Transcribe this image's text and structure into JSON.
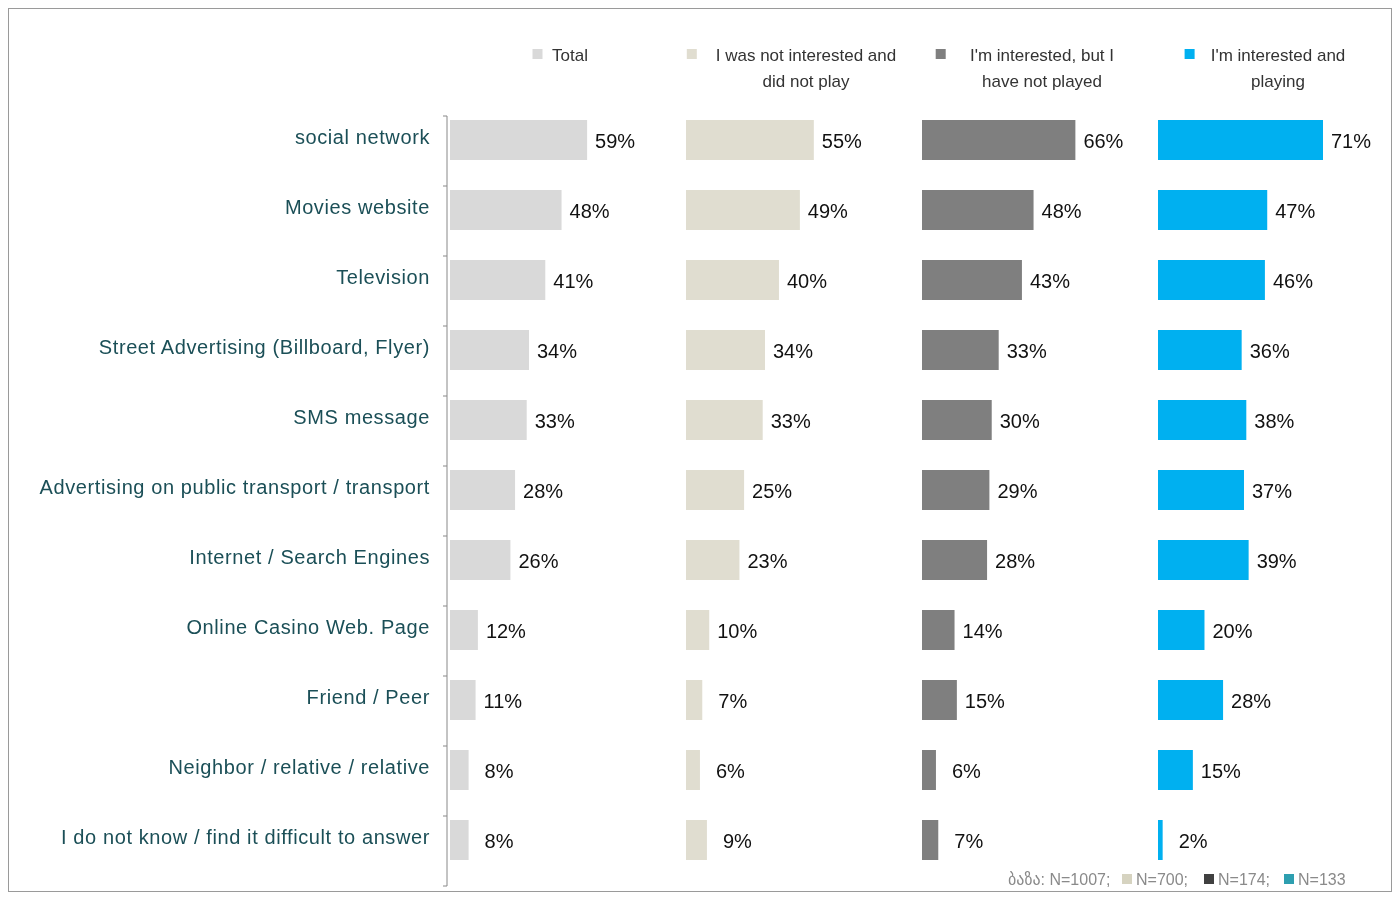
{
  "chart_data": [
    {
      "type": "bar",
      "orientation": "horizontal",
      "categories": [
        "social network",
        "Movies website",
        "Television",
        "Street Advertising (Billboard, Flyer)",
        "SMS message",
        "Advertising on public transport / transport",
        "Internet / Search Engines",
        "Online Casino Web. Page",
        "Friend / Peer",
        "Neighbor / relative / relative",
        "I do not know / find it difficult to answer"
      ],
      "series": [
        {
          "name": "Total",
          "color": "#d9d9d9",
          "values": [
            59,
            48,
            41,
            34,
            33,
            28,
            26,
            12,
            11,
            8,
            8
          ],
          "value_labels": [
            "59%",
            "48%",
            "41%",
            "34%",
            "33%",
            "28%",
            "26%",
            "12%",
            "11%",
            "8%",
            "8%"
          ]
        }
      ],
      "legend": "top",
      "tick_labels": "y",
      "annotations": [
        "ბაზა: N=1007;"
      ]
    },
    {
      "type": "bar",
      "orientation": "horizontal",
      "series": [
        {
          "name": "I was not interested and did not play",
          "color": "#e0ddd0",
          "values": [
            55,
            49,
            40,
            34,
            33,
            25,
            23,
            10,
            7,
            6,
            9
          ],
          "value_labels": [
            "55%",
            "49%",
            "40%",
            "34%",
            "33%",
            "25%",
            "23%",
            "10%",
            "7%",
            "6%",
            "9%"
          ]
        }
      ],
      "legend": "top",
      "annotations": [
        "N=700;"
      ]
    },
    {
      "type": "bar",
      "orientation": "horizontal",
      "series": [
        {
          "name": "I'm interested, but I have not played",
          "color": "#7f7f7f",
          "values": [
            66,
            48,
            43,
            33,
            30,
            29,
            28,
            14,
            15,
            6,
            7
          ],
          "value_labels": [
            "66%",
            "48%",
            "43%",
            "33%",
            "30%",
            "29%",
            "28%",
            "14%",
            "15%",
            "6%",
            "7%"
          ]
        }
      ],
      "legend": "top",
      "annotations": [
        "N=174;"
      ]
    },
    {
      "type": "bar",
      "orientation": "horizontal",
      "series": [
        {
          "name": "I'm interested and playing",
          "color": "#00b0f0",
          "values": [
            71,
            47,
            46,
            36,
            38,
            37,
            39,
            20,
            28,
            15,
            2
          ],
          "value_labels": [
            "71%",
            "47%",
            "46%",
            "36%",
            "38%",
            "37%",
            "39%",
            "20%",
            "28%",
            "15%",
            "2%"
          ]
        }
      ],
      "legend": "top",
      "annotations": [
        "N=133"
      ]
    }
  ]
}
